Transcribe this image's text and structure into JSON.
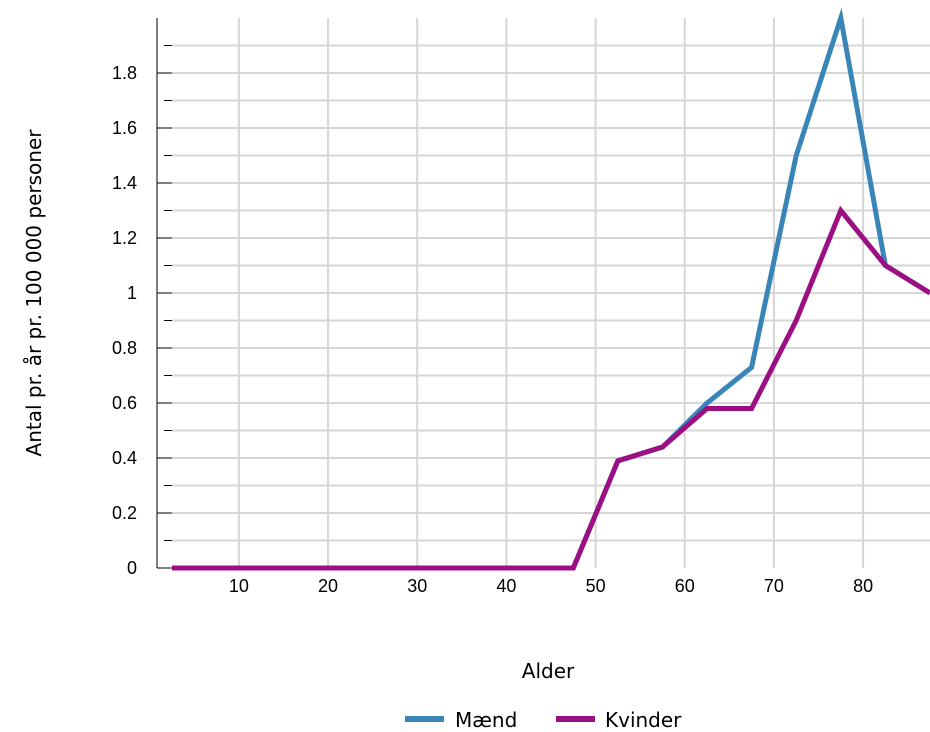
{
  "chart_data": {
    "type": "line",
    "xlabel": "Alder",
    "ylabel": "Antal pr. år pr. 100 000 personer",
    "xlim": [
      2.5,
      87.5
    ],
    "ylim": [
      0,
      2.0
    ],
    "x_ticks": [
      10,
      20,
      30,
      40,
      50,
      60,
      70,
      80
    ],
    "x_tick_labels": [
      "10",
      "20",
      "30",
      "40",
      "50",
      "60",
      "70",
      "80"
    ],
    "y_ticks": [
      0,
      0.2,
      0.4,
      0.6,
      0.8,
      1.0,
      1.2,
      1.4,
      1.6,
      1.8
    ],
    "y_tick_labels": [
      "0",
      "0.2",
      "0.4",
      "0.6",
      "0.8",
      "1",
      "1.2",
      "1.4",
      "1.6",
      "1.8"
    ],
    "grid": true,
    "legend_position": "bottom",
    "x": [
      2.5,
      7.5,
      12.5,
      17.5,
      22.5,
      27.5,
      32.5,
      37.5,
      42.5,
      47.5,
      52.5,
      57.5,
      62.5,
      67.5,
      72.5,
      77.5,
      82.5,
      87.5
    ],
    "series": [
      {
        "name": "Mænd",
        "color": "#3a85b8",
        "values": [
          0,
          0,
          0,
          0,
          0,
          0,
          0,
          0,
          0,
          0,
          0.39,
          0.44,
          0.6,
          0.73,
          1.5,
          2.0,
          1.1,
          1.0
        ]
      },
      {
        "name": "Kvinder",
        "color": "#9c0f83",
        "values": [
          0,
          0,
          0,
          0,
          0,
          0,
          0,
          0,
          0,
          0,
          0.39,
          0.44,
          0.58,
          0.58,
          0.9,
          1.3,
          1.1,
          1.0
        ]
      }
    ]
  }
}
